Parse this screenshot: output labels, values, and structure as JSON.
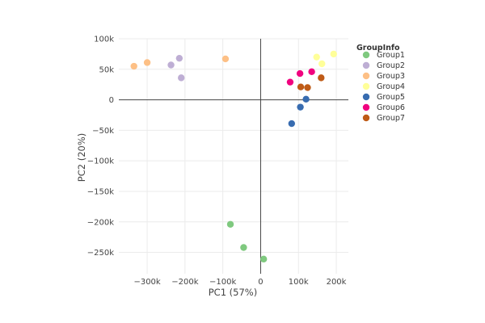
{
  "chart_data": {
    "type": "scatter",
    "title": "",
    "xlabel": "PC1 (57%)",
    "ylabel": "PC2 (20%)",
    "xlim": [
      -375000,
      232000
    ],
    "ylim": [
      -285000,
      100000
    ],
    "x_ticks": [
      {
        "value": -300000,
        "label": "−300k"
      },
      {
        "value": -200000,
        "label": "−200k"
      },
      {
        "value": -100000,
        "label": "−100k"
      },
      {
        "value": 0,
        "label": "0"
      },
      {
        "value": 100000,
        "label": "100k"
      },
      {
        "value": 200000,
        "label": "200k"
      }
    ],
    "y_ticks": [
      {
        "value": 100000,
        "label": "100k"
      },
      {
        "value": 50000,
        "label": "50k"
      },
      {
        "value": 0,
        "label": "0"
      },
      {
        "value": -50000,
        "label": "−50k"
      },
      {
        "value": -100000,
        "label": "−100k"
      },
      {
        "value": -150000,
        "label": "−150k"
      },
      {
        "value": -200000,
        "label": "−200k"
      },
      {
        "value": -250000,
        "label": "−250k"
      }
    ],
    "grid": true,
    "zero_lines": true,
    "legend": {
      "title": "GroupInfo",
      "placement": "right"
    },
    "series": [
      {
        "name": "Group1",
        "color": "#7fc97f",
        "points": [
          [
            -80000,
            -204000
          ],
          [
            -45000,
            -242000
          ],
          [
            8000,
            -261000
          ]
        ]
      },
      {
        "name": "Group2",
        "color": "#beaed4",
        "points": [
          [
            -237000,
            57000
          ],
          [
            -215000,
            68000
          ],
          [
            -210000,
            36000
          ]
        ]
      },
      {
        "name": "Group3",
        "color": "#fdc086",
        "points": [
          [
            -335000,
            55000
          ],
          [
            -300000,
            61000
          ],
          [
            -93000,
            67000
          ]
        ]
      },
      {
        "name": "Group4",
        "color": "#ffff99",
        "points": [
          [
            148000,
            70000
          ],
          [
            162000,
            59000
          ],
          [
            193000,
            75000
          ]
        ]
      },
      {
        "name": "Group5",
        "color": "#386cb0",
        "points": [
          [
            82000,
            -39000
          ],
          [
            105000,
            -12000
          ],
          [
            120000,
            1000
          ]
        ]
      },
      {
        "name": "Group6",
        "color": "#f0027f",
        "points": [
          [
            78000,
            29000
          ],
          [
            104000,
            43000
          ],
          [
            135000,
            46000
          ]
        ]
      },
      {
        "name": "Group7",
        "color": "#bf5b17",
        "points": [
          [
            106000,
            21000
          ],
          [
            124000,
            20000
          ],
          [
            160000,
            36000
          ]
        ]
      }
    ]
  }
}
